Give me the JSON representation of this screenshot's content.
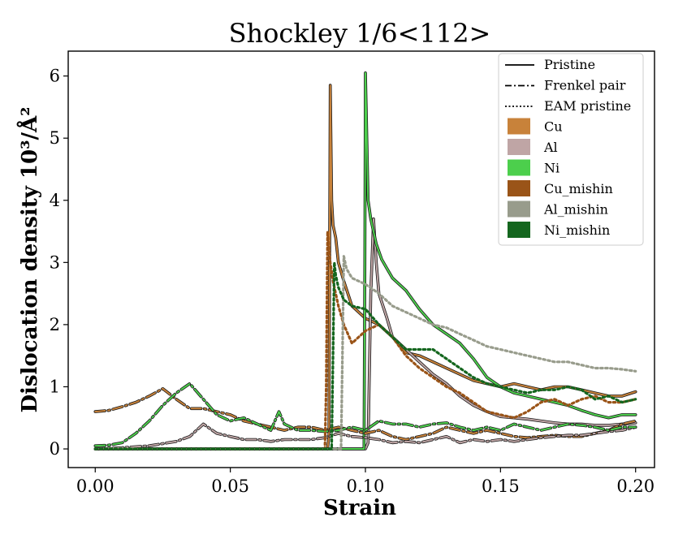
{
  "chart_data": {
    "type": "line",
    "title": "Shockley  1/6<112>",
    "xlabel": "Strain",
    "ylabel": "Dislocation density",
    "ylabel_unit": "10³/Å²",
    "xlim": [
      -0.01,
      0.207
    ],
    "ylim": [
      -0.3,
      6.4
    ],
    "xticks": [
      0.0,
      0.05,
      0.1,
      0.15,
      0.2
    ],
    "xtick_labels": [
      "0.00",
      "0.05",
      "0.10",
      "0.15",
      "0.20"
    ],
    "yticks": [
      0,
      1,
      2,
      3,
      4,
      5,
      6
    ],
    "ytick_labels": [
      "0",
      "1",
      "2",
      "3",
      "4",
      "5",
      "6"
    ],
    "legend_position": "top-right",
    "legend": [
      {
        "label": "Pristine",
        "kind": "line",
        "dash": "solid"
      },
      {
        "label": "Frenkel pair",
        "kind": "line",
        "dash": "dashdot"
      },
      {
        "label": "EAM pristine",
        "kind": "line",
        "dash": "dotted"
      },
      {
        "label": "Cu",
        "kind": "patch",
        "color": "#c8823a"
      },
      {
        "label": "Al",
        "kind": "patch",
        "color": "#bfa5a5"
      },
      {
        "label": "Ni",
        "kind": "patch",
        "color": "#4ccf4c"
      },
      {
        "label": "Cu_mishin",
        "kind": "patch",
        "color": "#9a5418"
      },
      {
        "label": "Al_mishin",
        "kind": "patch",
        "color": "#989c8c"
      },
      {
        "label": "Ni_mishin",
        "kind": "patch",
        "color": "#14661e"
      }
    ],
    "series": [
      {
        "name": "Cu pristine",
        "color": "#c8823a",
        "style": "solid",
        "x": [
          0,
          0.086,
          0.0865,
          0.087,
          0.0875,
          0.088,
          0.089,
          0.09,
          0.092,
          0.095,
          0.1,
          0.105,
          0.11,
          0.115,
          0.12,
          0.125,
          0.13,
          0.135,
          0.14,
          0.145,
          0.15,
          0.155,
          0.16,
          0.165,
          0.17,
          0.175,
          0.18,
          0.185,
          0.19,
          0.195,
          0.2
        ],
        "y": [
          0,
          0,
          0.2,
          5.85,
          4.0,
          3.6,
          3.4,
          3.0,
          2.7,
          2.3,
          2.1,
          2.0,
          1.8,
          1.55,
          1.5,
          1.4,
          1.3,
          1.2,
          1.1,
          1.05,
          1.0,
          1.05,
          1.0,
          0.95,
          1.0,
          1.0,
          0.95,
          0.9,
          0.85,
          0.85,
          0.92
        ]
      },
      {
        "name": "Al pristine",
        "color": "#bfa5a5",
        "style": "solid",
        "x": [
          0,
          0.1,
          0.101,
          0.102,
          0.103,
          0.104,
          0.105,
          0.108,
          0.11,
          0.115,
          0.12,
          0.125,
          0.13,
          0.135,
          0.14,
          0.145,
          0.15,
          0.155,
          0.16,
          0.165,
          0.17,
          0.175,
          0.18,
          0.185,
          0.19,
          0.195,
          0.2
        ],
        "y": [
          0,
          0,
          0.1,
          2.5,
          3.7,
          3.0,
          2.5,
          2.1,
          1.8,
          1.6,
          1.4,
          1.2,
          1.05,
          0.85,
          0.7,
          0.6,
          0.52,
          0.5,
          0.48,
          0.45,
          0.42,
          0.4,
          0.4,
          0.38,
          0.38,
          0.4,
          0.42
        ]
      },
      {
        "name": "Ni pristine",
        "color": "#4ccf4c",
        "style": "solid",
        "x": [
          0,
          0.0995,
          0.0998,
          0.1,
          0.101,
          0.102,
          0.104,
          0.106,
          0.108,
          0.11,
          0.115,
          0.12,
          0.125,
          0.13,
          0.135,
          0.14,
          0.145,
          0.15,
          0.155,
          0.16,
          0.165,
          0.17,
          0.175,
          0.18,
          0.185,
          0.19,
          0.195,
          0.2
        ],
        "y": [
          0,
          0,
          3.0,
          6.05,
          4.0,
          3.7,
          3.3,
          3.05,
          2.9,
          2.75,
          2.55,
          2.25,
          2.0,
          1.85,
          1.7,
          1.45,
          1.15,
          1.0,
          0.9,
          0.85,
          0.8,
          0.75,
          0.7,
          0.62,
          0.55,
          0.5,
          0.55,
          0.55
        ]
      },
      {
        "name": "Cu Frenkel pair",
        "color": "#c8823a",
        "style": "dashdot",
        "x": [
          0,
          0.005,
          0.01,
          0.015,
          0.02,
          0.025,
          0.03,
          0.035,
          0.04,
          0.045,
          0.05,
          0.055,
          0.06,
          0.065,
          0.07,
          0.075,
          0.08,
          0.085,
          0.09,
          0.095,
          0.1,
          0.105,
          0.11,
          0.115,
          0.12,
          0.125,
          0.13,
          0.135,
          0.14,
          0.145,
          0.15,
          0.155,
          0.16,
          0.165,
          0.17,
          0.175,
          0.18,
          0.185,
          0.19,
          0.195,
          0.2
        ],
        "y": [
          0.6,
          0.62,
          0.68,
          0.75,
          0.85,
          0.97,
          0.8,
          0.65,
          0.65,
          0.6,
          0.55,
          0.45,
          0.4,
          0.35,
          0.3,
          0.35,
          0.35,
          0.3,
          0.35,
          0.3,
          0.25,
          0.3,
          0.2,
          0.15,
          0.2,
          0.25,
          0.35,
          0.3,
          0.25,
          0.3,
          0.25,
          0.2,
          0.18,
          0.2,
          0.22,
          0.2,
          0.2,
          0.25,
          0.3,
          0.4,
          0.45
        ]
      },
      {
        "name": "Al Frenkel pair",
        "color": "#bfa5a5",
        "style": "dashdot",
        "x": [
          0,
          0.01,
          0.02,
          0.03,
          0.035,
          0.04,
          0.045,
          0.05,
          0.055,
          0.06,
          0.065,
          0.07,
          0.075,
          0.08,
          0.085,
          0.09,
          0.095,
          0.1,
          0.105,
          0.11,
          0.115,
          0.12,
          0.125,
          0.13,
          0.135,
          0.14,
          0.145,
          0.15,
          0.155,
          0.16,
          0.165,
          0.17,
          0.175,
          0.18,
          0.185,
          0.19,
          0.195,
          0.2
        ],
        "y": [
          0,
          0.02,
          0.05,
          0.12,
          0.2,
          0.4,
          0.25,
          0.2,
          0.15,
          0.15,
          0.12,
          0.15,
          0.15,
          0.15,
          0.18,
          0.25,
          0.2,
          0.18,
          0.15,
          0.1,
          0.12,
          0.1,
          0.15,
          0.2,
          0.1,
          0.15,
          0.12,
          0.15,
          0.12,
          0.15,
          0.18,
          0.2,
          0.22,
          0.22,
          0.25,
          0.28,
          0.3,
          0.35
        ]
      },
      {
        "name": "Ni Frenkel pair",
        "color": "#4ccf4c",
        "style": "dashdot",
        "x": [
          0,
          0.005,
          0.01,
          0.015,
          0.02,
          0.025,
          0.03,
          0.035,
          0.04,
          0.045,
          0.05,
          0.055,
          0.06,
          0.065,
          0.068,
          0.07,
          0.075,
          0.08,
          0.085,
          0.09,
          0.095,
          0.1,
          0.105,
          0.11,
          0.115,
          0.12,
          0.125,
          0.13,
          0.135,
          0.14,
          0.145,
          0.15,
          0.155,
          0.16,
          0.165,
          0.17,
          0.175,
          0.18,
          0.185,
          0.19,
          0.195,
          0.2
        ],
        "y": [
          0.05,
          0.06,
          0.1,
          0.25,
          0.45,
          0.7,
          0.9,
          1.05,
          0.8,
          0.55,
          0.45,
          0.5,
          0.4,
          0.3,
          0.6,
          0.4,
          0.3,
          0.3,
          0.28,
          0.3,
          0.35,
          0.3,
          0.45,
          0.4,
          0.4,
          0.35,
          0.4,
          0.42,
          0.35,
          0.3,
          0.35,
          0.3,
          0.4,
          0.35,
          0.3,
          0.35,
          0.4,
          0.38,
          0.35,
          0.3,
          0.35,
          0.35
        ]
      },
      {
        "name": "Cu_mishin EAM pristine",
        "color": "#9a5418",
        "style": "dotted",
        "x": [
          0,
          0.085,
          0.0855,
          0.086,
          0.087,
          0.088,
          0.09,
          0.092,
          0.095,
          0.1,
          0.105,
          0.11,
          0.115,
          0.12,
          0.125,
          0.13,
          0.135,
          0.14,
          0.145,
          0.15,
          0.155,
          0.16,
          0.165,
          0.17,
          0.175,
          0.18,
          0.185,
          0.19,
          0.195,
          0.2
        ],
        "y": [
          0,
          0,
          1.0,
          3.5,
          3.0,
          2.7,
          2.3,
          2.0,
          1.7,
          1.9,
          2.0,
          1.8,
          1.5,
          1.3,
          1.15,
          1.0,
          0.9,
          0.75,
          0.6,
          0.55,
          0.5,
          0.6,
          0.75,
          0.8,
          0.7,
          0.8,
          0.85,
          0.75,
          0.75,
          0.8
        ]
      },
      {
        "name": "Al_mishin EAM pristine",
        "color": "#989c8c",
        "style": "dotted",
        "x": [
          0,
          0.091,
          0.0915,
          0.092,
          0.093,
          0.095,
          0.1,
          0.105,
          0.11,
          0.115,
          0.12,
          0.125,
          0.13,
          0.135,
          0.14,
          0.145,
          0.15,
          0.155,
          0.16,
          0.165,
          0.17,
          0.175,
          0.18,
          0.185,
          0.19,
          0.195,
          0.2
        ],
        "y": [
          0,
          0,
          1.5,
          3.1,
          2.9,
          2.75,
          2.65,
          2.5,
          2.3,
          2.2,
          2.1,
          2.0,
          1.95,
          1.85,
          1.75,
          1.65,
          1.6,
          1.55,
          1.5,
          1.45,
          1.4,
          1.4,
          1.35,
          1.3,
          1.3,
          1.28,
          1.25
        ]
      },
      {
        "name": "Ni_mishin EAM pristine",
        "color": "#14661e",
        "style": "dotted",
        "x": [
          0,
          0.0875,
          0.088,
          0.0885,
          0.089,
          0.09,
          0.092,
          0.095,
          0.1,
          0.105,
          0.11,
          0.115,
          0.12,
          0.125,
          0.13,
          0.135,
          0.14,
          0.145,
          0.15,
          0.155,
          0.16,
          0.165,
          0.17,
          0.175,
          0.18,
          0.185,
          0.19,
          0.195,
          0.2
        ],
        "y": [
          0,
          0,
          1.5,
          3.0,
          2.8,
          2.6,
          2.4,
          2.3,
          2.25,
          2.0,
          1.8,
          1.6,
          1.6,
          1.6,
          1.45,
          1.3,
          1.15,
          1.05,
          1.0,
          0.95,
          0.9,
          0.95,
          0.95,
          1.0,
          0.95,
          0.8,
          0.85,
          0.75,
          0.8
        ]
      }
    ]
  }
}
